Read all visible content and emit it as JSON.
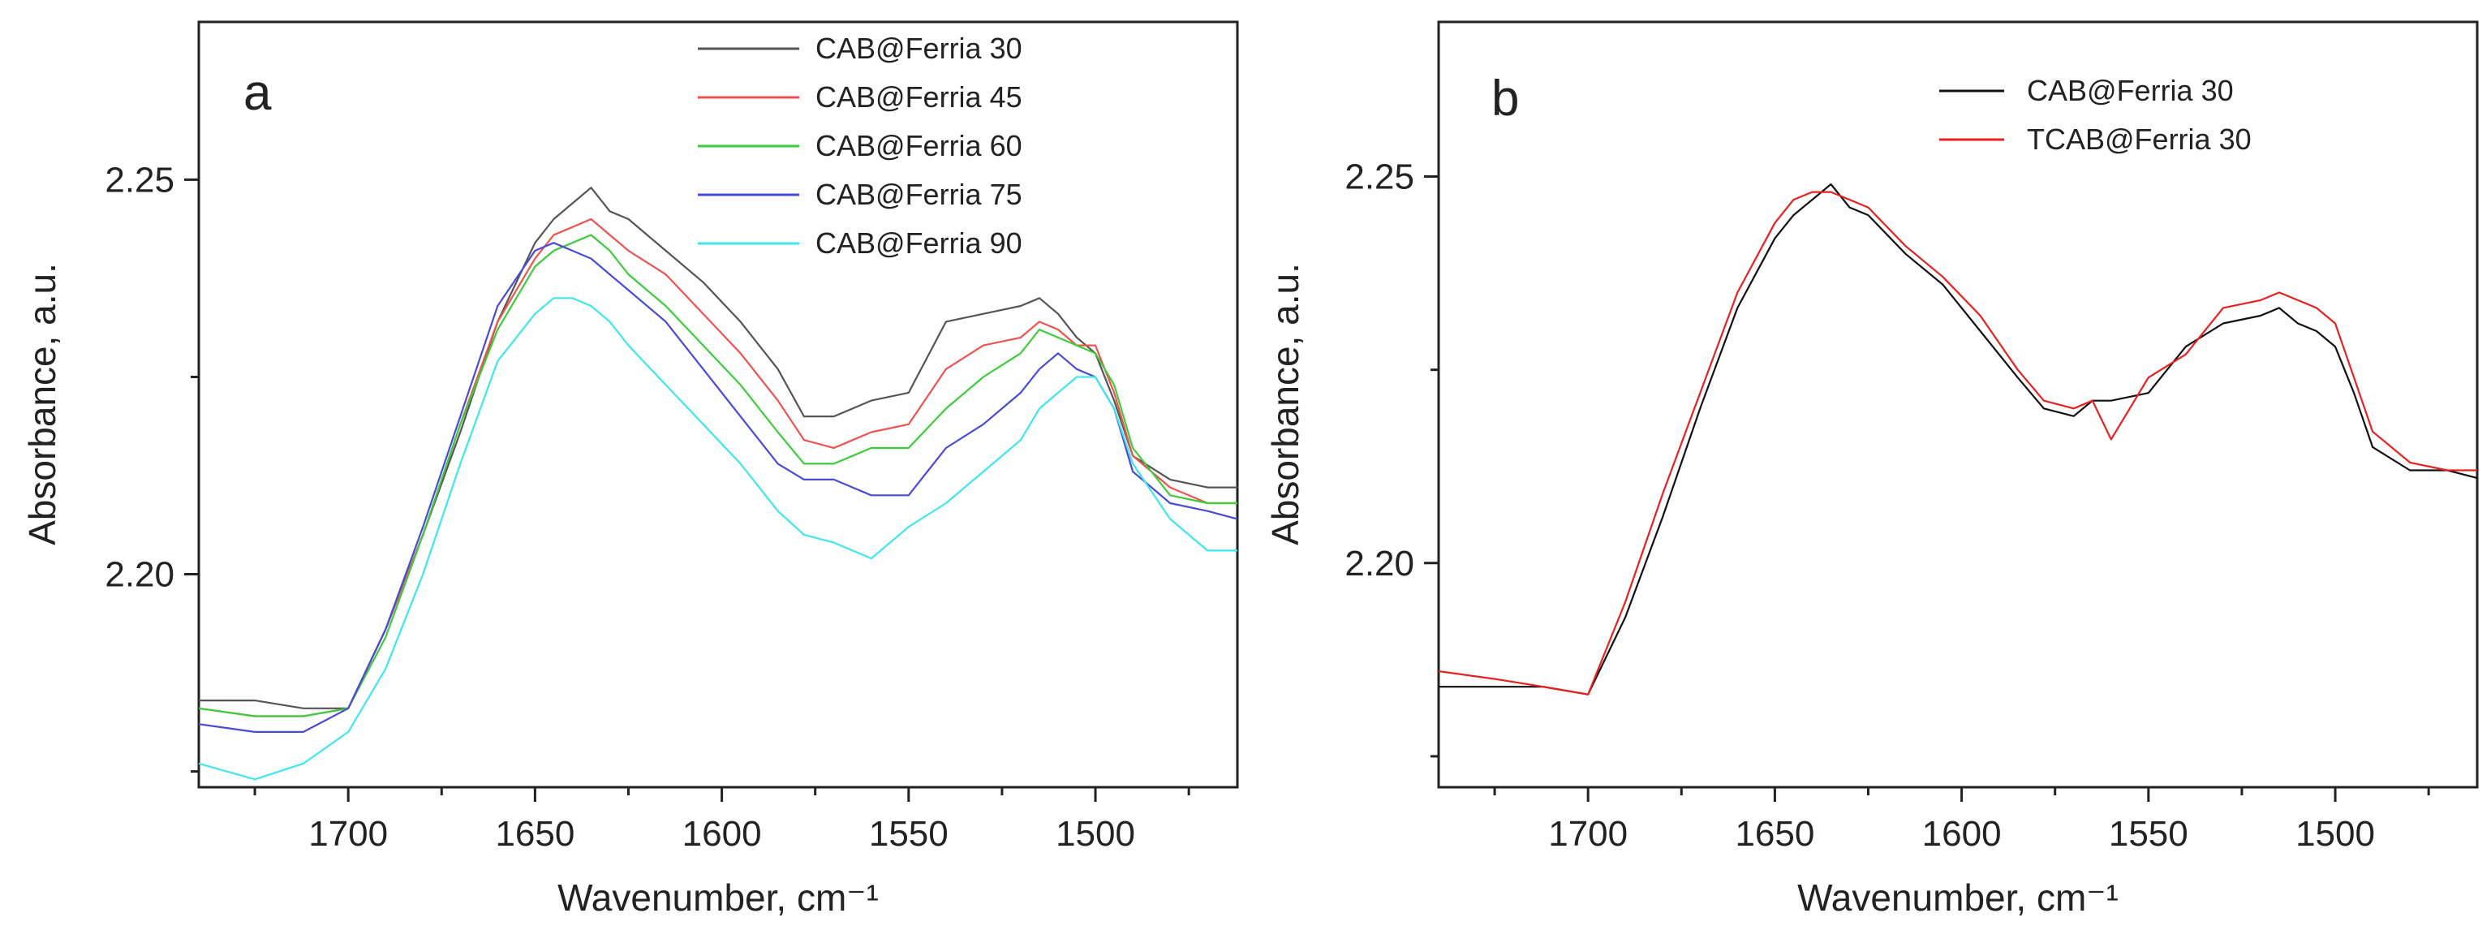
{
  "chart_data": [
    {
      "type": "line",
      "panel_label": "a",
      "xlabel": "Wavenumber, cm⁻¹",
      "ylabel": "Absorbance, a.u.",
      "xlim": [
        1740,
        1462
      ],
      "ylim": [
        2.173,
        2.27
      ],
      "x_ticks": [
        1700,
        1650,
        1600,
        1550,
        1500
      ],
      "x_tick_labels": [
        "1700",
        "1650",
        "1600",
        "1550",
        "1500"
      ],
      "y_ticks": [
        2.2,
        2.25
      ],
      "y_tick_labels": [
        "2.20",
        "2.25"
      ],
      "legend_position": "top-right",
      "series": [
        {
          "name": "CAB@Ferria 30",
          "color": "#555555",
          "x": [
            1740,
            1725,
            1712,
            1700,
            1690,
            1680,
            1670,
            1660,
            1650,
            1645,
            1640,
            1635,
            1630,
            1625,
            1615,
            1605,
            1595,
            1585,
            1578,
            1570,
            1565,
            1560,
            1550,
            1540,
            1530,
            1520,
            1515,
            1510,
            1505,
            1500,
            1495,
            1490,
            1480,
            1470,
            1462
          ],
          "y": [
            2.184,
            2.184,
            2.183,
            2.183,
            2.193,
            2.205,
            2.218,
            2.232,
            2.242,
            2.245,
            2.247,
            2.249,
            2.246,
            2.245,
            2.241,
            2.237,
            2.232,
            2.226,
            2.22,
            2.22,
            2.221,
            2.222,
            2.223,
            2.232,
            2.233,
            2.234,
            2.235,
            2.233,
            2.23,
            2.228,
            2.222,
            2.215,
            2.212,
            2.211,
            2.211
          ]
        },
        {
          "name": "CAB@Ferria 45",
          "color": "#ef5350",
          "x": [
            1740,
            1725,
            1712,
            1700,
            1690,
            1680,
            1670,
            1660,
            1650,
            1645,
            1640,
            1635,
            1630,
            1625,
            1615,
            1605,
            1595,
            1585,
            1578,
            1570,
            1565,
            1560,
            1550,
            1540,
            1530,
            1520,
            1515,
            1510,
            1505,
            1500,
            1495,
            1490,
            1480,
            1470,
            1462
          ],
          "y": [
            2.183,
            2.182,
            2.182,
            2.183,
            2.193,
            2.205,
            2.219,
            2.232,
            2.24,
            2.243,
            2.244,
            2.245,
            2.243,
            2.241,
            2.238,
            2.233,
            2.228,
            2.222,
            2.217,
            2.216,
            2.217,
            2.218,
            2.219,
            2.226,
            2.229,
            2.23,
            2.232,
            2.231,
            2.229,
            2.229,
            2.223,
            2.215,
            2.211,
            2.209,
            2.209
          ]
        },
        {
          "name": "CAB@Ferria 60",
          "color": "#3ccc3c",
          "x": [
            1740,
            1725,
            1712,
            1700,
            1690,
            1680,
            1670,
            1660,
            1650,
            1645,
            1640,
            1635,
            1630,
            1625,
            1615,
            1605,
            1595,
            1585,
            1578,
            1570,
            1565,
            1560,
            1550,
            1540,
            1530,
            1520,
            1515,
            1510,
            1505,
            1500,
            1495,
            1490,
            1480,
            1470,
            1462
          ],
          "y": [
            2.183,
            2.182,
            2.182,
            2.183,
            2.192,
            2.205,
            2.219,
            2.231,
            2.239,
            2.241,
            2.242,
            2.243,
            2.241,
            2.238,
            2.234,
            2.229,
            2.224,
            2.218,
            2.214,
            2.214,
            2.215,
            2.216,
            2.216,
            2.221,
            2.225,
            2.228,
            2.231,
            2.23,
            2.229,
            2.228,
            2.224,
            2.216,
            2.21,
            2.209,
            2.209
          ]
        },
        {
          "name": "CAB@Ferria 75",
          "color": "#4a4ad8",
          "x": [
            1740,
            1725,
            1712,
            1700,
            1690,
            1680,
            1670,
            1660,
            1650,
            1645,
            1640,
            1635,
            1630,
            1625,
            1615,
            1605,
            1595,
            1585,
            1578,
            1570,
            1565,
            1560,
            1550,
            1540,
            1530,
            1520,
            1515,
            1510,
            1505,
            1500,
            1495,
            1490,
            1480,
            1470,
            1462
          ],
          "y": [
            2.181,
            2.18,
            2.18,
            2.183,
            2.193,
            2.206,
            2.22,
            2.234,
            2.241,
            2.242,
            2.241,
            2.24,
            2.238,
            2.236,
            2.232,
            2.226,
            2.22,
            2.214,
            2.212,
            2.212,
            2.211,
            2.21,
            2.21,
            2.216,
            2.219,
            2.223,
            2.226,
            2.228,
            2.226,
            2.225,
            2.221,
            2.213,
            2.209,
            2.208,
            2.207
          ]
        },
        {
          "name": "CAB@Ferria 90",
          "color": "#3fe6ee",
          "x": [
            1740,
            1725,
            1712,
            1700,
            1690,
            1680,
            1670,
            1660,
            1650,
            1645,
            1640,
            1635,
            1630,
            1625,
            1615,
            1605,
            1595,
            1585,
            1578,
            1570,
            1565,
            1560,
            1550,
            1540,
            1530,
            1520,
            1515,
            1510,
            1505,
            1500,
            1495,
            1490,
            1480,
            1470,
            1462
          ],
          "y": [
            2.176,
            2.174,
            2.176,
            2.18,
            2.188,
            2.2,
            2.214,
            2.227,
            2.233,
            2.235,
            2.235,
            2.234,
            2.232,
            2.229,
            2.224,
            2.219,
            2.214,
            2.208,
            2.205,
            2.204,
            2.203,
            2.202,
            2.206,
            2.209,
            2.213,
            2.217,
            2.221,
            2.223,
            2.225,
            2.225,
            2.221,
            2.214,
            2.207,
            2.203,
            2.203
          ]
        }
      ]
    },
    {
      "type": "line",
      "panel_label": "b",
      "xlabel": "Wavenumber, cm⁻¹",
      "ylabel": "Absorbance, a.u.",
      "xlim": [
        1740,
        1462
      ],
      "ylim": [
        2.171,
        2.27
      ],
      "x_ticks": [
        1700,
        1650,
        1600,
        1550,
        1500
      ],
      "x_tick_labels": [
        "1700",
        "1650",
        "1600",
        "1550",
        "1500"
      ],
      "y_ticks": [
        2.2,
        2.25
      ],
      "y_tick_labels": [
        "2.20",
        "2.25"
      ],
      "legend_position": "top-right",
      "series": [
        {
          "name": "CAB@Ferria 30",
          "color": "#111111",
          "x": [
            1740,
            1725,
            1712,
            1700,
            1690,
            1680,
            1670,
            1660,
            1650,
            1645,
            1640,
            1635,
            1630,
            1625,
            1615,
            1605,
            1595,
            1585,
            1578,
            1570,
            1565,
            1560,
            1550,
            1540,
            1530,
            1520,
            1515,
            1510,
            1505,
            1500,
            1495,
            1490,
            1480,
            1470,
            1462
          ],
          "y": [
            2.184,
            2.184,
            2.184,
            2.183,
            2.193,
            2.206,
            2.22,
            2.233,
            2.242,
            2.245,
            2.247,
            2.249,
            2.246,
            2.245,
            2.24,
            2.236,
            2.23,
            2.224,
            2.22,
            2.219,
            2.221,
            2.221,
            2.222,
            2.228,
            2.231,
            2.232,
            2.233,
            2.231,
            2.23,
            2.228,
            2.222,
            2.215,
            2.212,
            2.212,
            2.211
          ]
        },
        {
          "name": "TCAB@Ferria 30",
          "color": "#e82020",
          "x": [
            1740,
            1725,
            1712,
            1700,
            1690,
            1680,
            1670,
            1660,
            1650,
            1645,
            1640,
            1635,
            1630,
            1625,
            1615,
            1605,
            1595,
            1585,
            1578,
            1570,
            1565,
            1560,
            1550,
            1540,
            1530,
            1520,
            1515,
            1510,
            1505,
            1500,
            1495,
            1490,
            1480,
            1470,
            1462
          ],
          "y": [
            2.186,
            2.185,
            2.184,
            2.183,
            2.195,
            2.209,
            2.222,
            2.235,
            2.244,
            2.247,
            2.248,
            2.248,
            2.247,
            2.246,
            2.241,
            2.237,
            2.232,
            2.225,
            2.221,
            2.22,
            2.221,
            2.216,
            2.224,
            2.227,
            2.233,
            2.234,
            2.235,
            2.234,
            2.233,
            2.231,
            2.224,
            2.217,
            2.213,
            2.212,
            2.212
          ]
        }
      ]
    }
  ]
}
